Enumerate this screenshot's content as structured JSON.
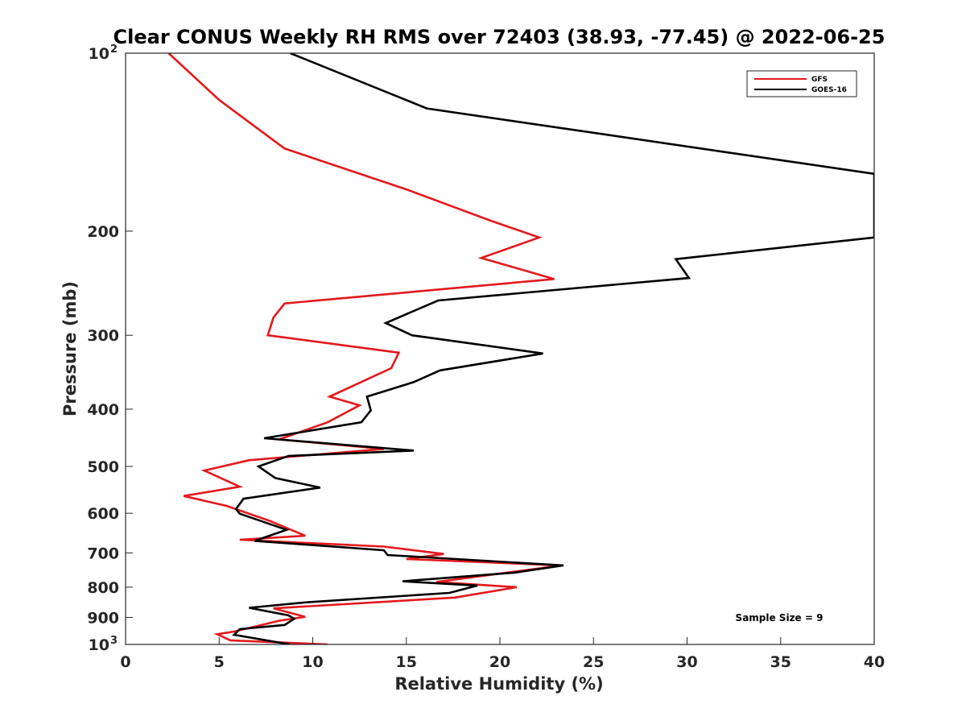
{
  "chart_data": {
    "type": "line",
    "title": "Clear CONUS Weekly RH RMS over 72403 (38.93, -77.45) @ 2022-06-25",
    "xlabel": "Relative Humidity (%)",
    "ylabel": "Pressure (mb)",
    "xlim": [
      0,
      40
    ],
    "ylim": [
      100,
      1000
    ],
    "y_scale": "log",
    "y_reversed": true,
    "grid": false,
    "legend_position": "top-right",
    "x_ticks": [
      {
        "value": 0,
        "label": "0"
      },
      {
        "value": 5,
        "label": "5"
      },
      {
        "value": 10,
        "label": "10"
      },
      {
        "value": 15,
        "label": "15"
      },
      {
        "value": 20,
        "label": "20"
      },
      {
        "value": 25,
        "label": "25"
      },
      {
        "value": 30,
        "label": "30"
      },
      {
        "value": 35,
        "label": "35"
      },
      {
        "value": 40,
        "label": "40"
      }
    ],
    "y_ticks": [
      {
        "value": 100,
        "base": "10",
        "exp": "2"
      },
      {
        "value": 200,
        "label": "200"
      },
      {
        "value": 300,
        "label": "300"
      },
      {
        "value": 400,
        "label": "400"
      },
      {
        "value": 500,
        "label": "500"
      },
      {
        "value": 600,
        "label": "600"
      },
      {
        "value": 700,
        "label": "700"
      },
      {
        "value": 800,
        "label": "800"
      },
      {
        "value": 900,
        "label": "900"
      },
      {
        "value": 1000,
        "base": "10",
        "exp": "3"
      }
    ],
    "series": [
      {
        "name": "GFS",
        "color": "#e3191c",
        "points": [
          [
            2.3,
            100
          ],
          [
            5.0,
            120
          ],
          [
            8.5,
            145
          ],
          [
            15.0,
            170
          ],
          [
            19.5,
            192
          ],
          [
            22.1,
            205
          ],
          [
            19.0,
            222
          ],
          [
            22.9,
            241
          ],
          [
            8.5,
            265
          ],
          [
            7.9,
            280
          ],
          [
            7.6,
            300
          ],
          [
            14.6,
            321
          ],
          [
            14.2,
            341
          ],
          [
            10.9,
            381
          ],
          [
            12.5,
            394
          ],
          [
            10.8,
            421
          ],
          [
            8.2,
            450
          ],
          [
            13.8,
            467
          ],
          [
            6.6,
            488
          ],
          [
            4.2,
            508
          ],
          [
            6.1,
            541
          ],
          [
            3.1,
            561
          ],
          [
            5.4,
            583
          ],
          [
            7.7,
            618
          ],
          [
            9.6,
            655
          ],
          [
            6.1,
            665
          ],
          [
            13.8,
            683
          ],
          [
            17.0,
            703
          ],
          [
            15.0,
            717
          ],
          [
            23.3,
            735
          ],
          [
            16.6,
            784
          ],
          [
            20.9,
            800
          ],
          [
            17.6,
            833
          ],
          [
            7.9,
            869
          ],
          [
            9.6,
            898
          ],
          [
            8.2,
            912
          ],
          [
            5.8,
            951
          ],
          [
            4.9,
            961
          ],
          [
            5.6,
            984
          ],
          [
            10.8,
            1000
          ]
        ]
      },
      {
        "name": "GOES-16",
        "color": "#000000",
        "points": [
          [
            8.8,
            100
          ],
          [
            16.1,
            124
          ],
          [
            40.0,
            160
          ],
          [
            40.0,
            205
          ],
          [
            29.4,
            223
          ],
          [
            30.1,
            240
          ],
          [
            16.7,
            262
          ],
          [
            13.9,
            286
          ],
          [
            15.3,
            300
          ],
          [
            22.3,
            322
          ],
          [
            16.8,
            344
          ],
          [
            15.4,
            360
          ],
          [
            12.9,
            381
          ],
          [
            13.1,
            402
          ],
          [
            12.6,
            421
          ],
          [
            7.4,
            448
          ],
          [
            15.4,
            470
          ],
          [
            8.7,
            480
          ],
          [
            7.1,
            500
          ],
          [
            8.0,
            523
          ],
          [
            10.4,
            543
          ],
          [
            6.3,
            567
          ],
          [
            5.9,
            590
          ],
          [
            6.1,
            601
          ],
          [
            8.6,
            640
          ],
          [
            6.9,
            668
          ],
          [
            13.8,
            693
          ],
          [
            14.0,
            706
          ],
          [
            23.4,
            735
          ],
          [
            20.8,
            756
          ],
          [
            14.8,
            782
          ],
          [
            18.8,
            795
          ],
          [
            17.3,
            818
          ],
          [
            9.6,
            849
          ],
          [
            6.6,
            867
          ],
          [
            8.7,
            893
          ],
          [
            9.0,
            905
          ],
          [
            8.5,
            927
          ],
          [
            6.1,
            942
          ],
          [
            5.8,
            963
          ],
          [
            8.8,
            1000
          ]
        ]
      }
    ],
    "legend": [
      {
        "label": "GFS",
        "color": "#e3191c"
      },
      {
        "label": "GOES-16",
        "color": "#000000"
      }
    ],
    "annotation": "Sample Size = 9"
  }
}
